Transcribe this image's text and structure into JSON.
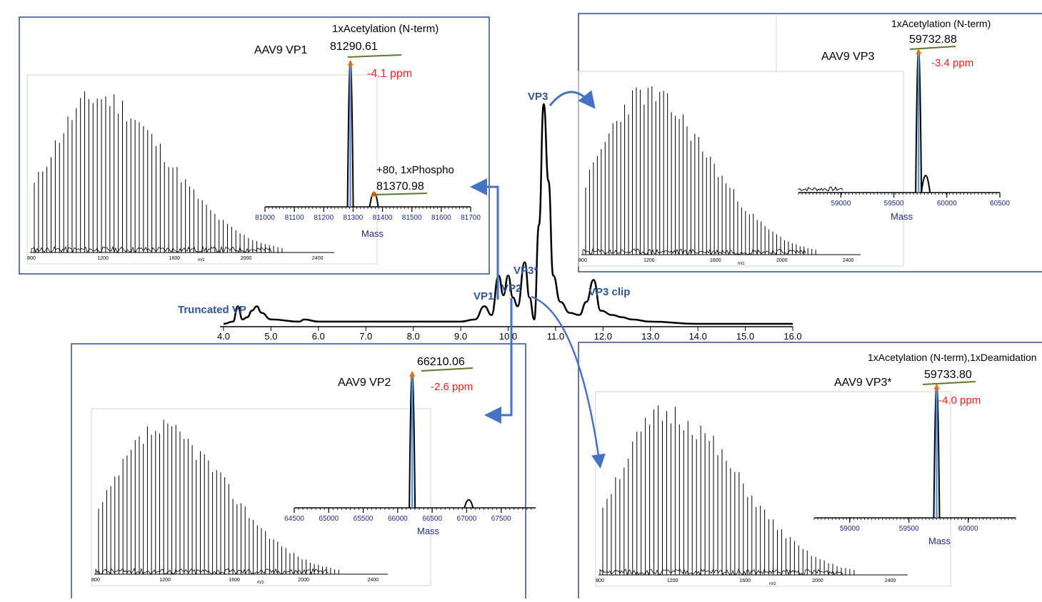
{
  "chromatogram": {
    "x_ticks": [
      "4.0",
      "5.0",
      "6.0",
      "7.0",
      "8.0",
      "9.0",
      "10.0",
      "11.0",
      "12.0",
      "13.0",
      "14.0",
      "15.0",
      "16.0"
    ],
    "peak_labels": {
      "truncated": "Truncated VP",
      "vp1": "VP1",
      "vp2": "VP2",
      "vp3star": "VP3*",
      "vp3": "VP3",
      "vp3clip": "VP3 clip"
    }
  },
  "panels": {
    "vp1": {
      "title": "AAV9 VP1",
      "main_mod": "1xAcetylation (N-term)",
      "main_mass": "81290.61",
      "main_ppm": "-4.1 ppm",
      "minor_mod": "+80, 1xPhospho",
      "minor_mass": "81370.98",
      "mass_ticks": [
        "81000",
        "81100",
        "81200",
        "81300",
        "81400",
        "81500",
        "81600",
        "81700"
      ],
      "mass_label": "Mass",
      "mz_ticks": [
        "800",
        "1200",
        "1600",
        "2000",
        "2400"
      ],
      "mz_label": "m/z"
    },
    "vp2": {
      "title": "AAV9 VP2",
      "main_mass": "66210.06",
      "main_ppm": "-2.6 ppm",
      "mass_ticks": [
        "64500",
        "65000",
        "65500",
        "66000",
        "66500",
        "67000",
        "67500"
      ],
      "mass_label": "Mass",
      "mz_ticks": [
        "800",
        "1200",
        "1600",
        "2000",
        "2400"
      ],
      "mz_label": "m/z"
    },
    "vp3": {
      "title": "AAV9 VP3",
      "main_mod": "1xAcetylation (N-term)",
      "main_mass": "59732.88",
      "main_ppm": "-3.4 ppm",
      "mass_ticks": [
        "59000",
        "59500",
        "60000",
        "60500"
      ],
      "mass_label": "Mass",
      "mz_ticks": [
        "800",
        "1200",
        "1600",
        "2000",
        "2400"
      ],
      "mz_label": "m/z"
    },
    "vp3star": {
      "title": "AAV9 VP3*",
      "main_mod": "1xAcetylation (N-term),1xDeamidation",
      "main_mass": "59733.80",
      "main_ppm": "-4.0 ppm",
      "mass_ticks": [
        "59000",
        "59500",
        "60000"
      ],
      "mass_label": "Mass",
      "mz_ticks": [
        "800",
        "1200",
        "1600",
        "2000",
        "2400"
      ],
      "mz_label": "m/z"
    }
  },
  "chart_data": [
    {
      "type": "line",
      "x": [
        4.0,
        4.2,
        4.3,
        4.4,
        4.5,
        4.6,
        4.7,
        4.8,
        5.0,
        5.6,
        5.7,
        6.0,
        7.0,
        8.0,
        9.0,
        9.3,
        9.5,
        9.65,
        9.8,
        9.9,
        10.0,
        10.1,
        10.2,
        10.35,
        10.45,
        10.55,
        10.65,
        10.75,
        10.85,
        10.95,
        11.1,
        11.3,
        11.5,
        11.65,
        11.8,
        11.95,
        12.2,
        12.4,
        12.6,
        13.0,
        14.0,
        15.0,
        16.0
      ],
      "y": [
        0.0,
        0.01,
        0.08,
        0.02,
        0.03,
        0.06,
        0.08,
        0.05,
        0.02,
        0.01,
        0.02,
        0.01,
        0.01,
        0.01,
        0.01,
        0.02,
        0.08,
        0.04,
        0.22,
        0.13,
        0.22,
        0.12,
        0.08,
        0.28,
        0.12,
        0.02,
        0.45,
        1.0,
        0.65,
        0.22,
        0.1,
        0.05,
        0.04,
        0.1,
        0.2,
        0.06,
        0.04,
        0.03,
        0.02,
        0.01,
        0.0,
        0.0,
        0.0
      ],
      "xlim": [
        4.0,
        16.0
      ],
      "peaks": [
        {
          "label": "Truncated VP",
          "x": 4.3
        },
        {
          "label": "VP1",
          "x": 9.8
        },
        {
          "label": "VP2",
          "x": 10.0
        },
        {
          "label": "VP3*",
          "x": 10.35
        },
        {
          "label": "VP3",
          "x": 10.75
        },
        {
          "label": "VP3 clip",
          "x": 11.8
        }
      ]
    },
    {
      "type": "bar",
      "title": "AAV9 VP1",
      "xlabel": "Mass",
      "xlim": [
        81000,
        81700
      ],
      "series": [
        {
          "name": "",
          "x": [
            81290.61,
            81370.98
          ],
          "values": [
            1.0,
            0.1
          ]
        }
      ]
    },
    {
      "type": "bar",
      "title": "AAV9 VP2",
      "xlabel": "Mass",
      "xlim": [
        64500,
        68000
      ],
      "series": [
        {
          "name": "",
          "x": [
            66210.06,
            67030
          ],
          "values": [
            1.0,
            0.06
          ]
        }
      ]
    },
    {
      "type": "bar",
      "title": "AAV9 VP3",
      "xlabel": "Mass",
      "xlim": [
        58600,
        60500
      ],
      "series": [
        {
          "name": "",
          "x": [
            59732.88,
            59800
          ],
          "values": [
            1.0,
            0.12
          ]
        }
      ]
    },
    {
      "type": "bar",
      "title": "AAV9 VP3*",
      "xlabel": "Mass",
      "xlim": [
        58700,
        60400
      ],
      "series": [
        {
          "name": "",
          "x": [
            59733.8
          ],
          "values": [
            1.0
          ]
        }
      ]
    }
  ],
  "colors": {
    "frame": "#2f4f8f",
    "arrow": "#4472c4",
    "label_blue": "#2f5597",
    "ppm_red": "#ff1a1a",
    "marker_orange": "#ff6a00",
    "underline_green": "#5a7a2a",
    "mass_axis": "#1f2a80"
  }
}
